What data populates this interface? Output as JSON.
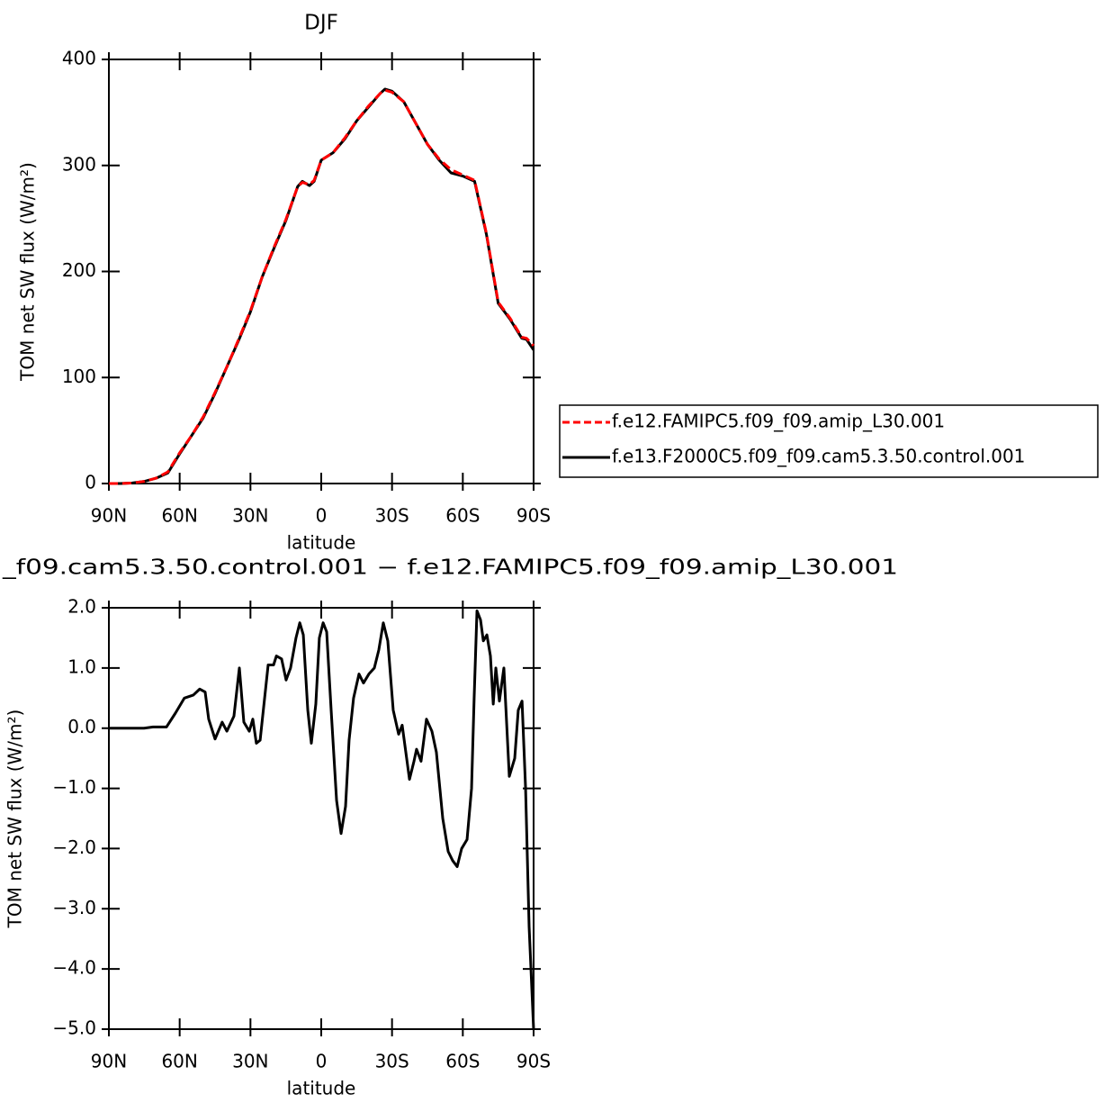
{
  "chart_data": [
    {
      "type": "line",
      "title": "DJF",
      "xlabel": "latitude",
      "ylabel": "TOM net SW flux (W/m²)",
      "x": [
        90,
        85,
        80,
        75,
        70,
        65,
        60,
        55,
        50,
        45,
        40,
        35,
        30,
        25,
        20,
        15,
        10,
        8,
        5,
        3,
        0,
        -5,
        -10,
        -15,
        -20,
        -25,
        -27,
        -30,
        -35,
        -40,
        -45,
        -50,
        -55,
        -60,
        -65,
        -70,
        -75,
        -80,
        -85,
        -87,
        -90
      ],
      "series": [
        {
          "name": "f.e12.FAMIPC5.f09_f09.amip_L30.001",
          "color": "#ff0000",
          "dashed": true,
          "values": [
            0,
            0,
            0.5,
            2,
            5,
            11,
            29,
            45,
            63,
            86,
            110,
            136,
            163,
            195,
            223,
            249,
            280,
            284,
            282,
            286,
            305,
            312,
            326,
            342,
            356,
            368,
            371,
            369,
            360,
            340,
            320,
            306,
            296,
            291,
            286,
            236,
            171,
            156,
            138,
            137,
            130
          ]
        },
        {
          "name": "f.e13.F2000C5.f09_f09.cam5.3.50.control.001",
          "color": "#000000",
          "dashed": false,
          "values": [
            0,
            0,
            0.5,
            2,
            5,
            10,
            28,
            45,
            62,
            85,
            110,
            135,
            162,
            195,
            222,
            248,
            280,
            285,
            281,
            285,
            305,
            312,
            325,
            342,
            355,
            368,
            372,
            370,
            360,
            340,
            320,
            305,
            293,
            290,
            285,
            235,
            170,
            155,
            137,
            136,
            126
          ]
        }
      ],
      "xlim": [
        90,
        -90
      ],
      "xticks": [
        {
          "value": 90,
          "label": "90N"
        },
        {
          "value": 60,
          "label": "60N"
        },
        {
          "value": 30,
          "label": "30N"
        },
        0,
        {
          "value": -30,
          "label": "30S"
        },
        {
          "value": -60,
          "label": "60S"
        },
        {
          "value": -90,
          "label": "90S"
        }
      ],
      "ylim": [
        0,
        400
      ],
      "yticks": [
        0,
        100,
        200,
        300,
        400
      ],
      "grid": false,
      "legend": "right"
    },
    {
      "type": "line",
      "title": "_f09.cam5.3.50.control.001 − f.e12.FAMIPC5.f09_f09.amip_L30.001",
      "xlabel": "latitude",
      "ylabel": "TOM net SW flux (W/m²)",
      "x": [
        90,
        75.1,
        71.3,
        65.6,
        61.8,
        58,
        54.2,
        51.5,
        49.2,
        47.7,
        45,
        42,
        40,
        37,
        34.7,
        32.8,
        30.5,
        29,
        27.5,
        25.9,
        22.5,
        20.2,
        19,
        16.8,
        14.9,
        13,
        10.7,
        9.1,
        7.6,
        5.7,
        4.2,
        2.3,
        0.8,
        -0.8,
        -2.3,
        -4.2,
        -6.5,
        -8.4,
        -10.3,
        -11.8,
        -13.7,
        -16,
        -17.9,
        -20.2,
        -22.5,
        -24.4,
        -26.3,
        -28.2,
        -30.5,
        -32.8,
        -34.3,
        -37.4,
        -39.3,
        -40.4,
        -42.3,
        -44.6,
        -46.9,
        -48.8,
        -51.5,
        -53.8,
        -55.7,
        -57.6,
        -59.5,
        -61.8,
        -63.7,
        -64.8,
        -66,
        -67.5,
        -68.7,
        -70.2,
        -71.7,
        -72.9,
        -74,
        -75.5,
        -77.4,
        -79.7,
        -82,
        -83.5,
        -85.1,
        -86.6,
        -88.1,
        -90
      ],
      "series": [
        {
          "name": "f.e13.F2000C5.f09_f09.cam5.3.50.control.001",
          "color": "#000000",
          "dashed": false,
          "values": [
            0,
            0,
            0.02,
            0.02,
            0.25,
            0.5,
            0.55,
            0.65,
            0.6,
            0.15,
            -0.18,
            0.1,
            -0.05,
            0.2,
            1.0,
            0.1,
            -0.05,
            0.15,
            -0.25,
            -0.2,
            1.05,
            1.05,
            1.2,
            1.15,
            0.8,
            1.0,
            1.5,
            1.75,
            1.55,
            0.3,
            -0.25,
            0.4,
            1.5,
            1.75,
            1.6,
            0.3,
            -1.2,
            -1.75,
            -1.3,
            -0.2,
            0.5,
            0.9,
            0.75,
            0.9,
            1.0,
            1.3,
            1.75,
            1.45,
            0.3,
            -0.1,
            0.05,
            -0.85,
            -0.55,
            -0.35,
            -0.55,
            0.15,
            -0.05,
            -0.4,
            -1.5,
            -2.05,
            -2.2,
            -2.3,
            -2.0,
            -1.85,
            -1.0,
            0.5,
            1.95,
            1.8,
            1.45,
            1.55,
            1.2,
            0.4,
            1.0,
            0.45,
            1.0,
            -0.8,
            -0.5,
            0.3,
            0.45,
            -1.0,
            -3.3,
            -5.0
          ]
        }
      ],
      "xlim": [
        90,
        -90
      ],
      "xticks": [
        {
          "value": 90,
          "label": "90N"
        },
        {
          "value": 60,
          "label": "60N"
        },
        {
          "value": 30,
          "label": "30N"
        },
        0,
        {
          "value": -30,
          "label": "30S"
        },
        {
          "value": -60,
          "label": "60S"
        },
        {
          "value": -90,
          "label": "90S"
        }
      ],
      "ylim": [
        -5,
        2
      ],
      "yticks": [
        {
          "value": 2,
          "label": "2.0"
        },
        {
          "value": 1,
          "label": "1.0"
        },
        {
          "value": 0,
          "label": "0.0"
        },
        {
          "value": -1,
          "label": "−1.0"
        },
        {
          "value": -2,
          "label": "−2.0"
        },
        {
          "value": -3,
          "label": "−3.0"
        },
        {
          "value": -4,
          "label": "−4.0"
        },
        {
          "value": -5,
          "label": "−5.0"
        }
      ],
      "grid": false
    }
  ]
}
